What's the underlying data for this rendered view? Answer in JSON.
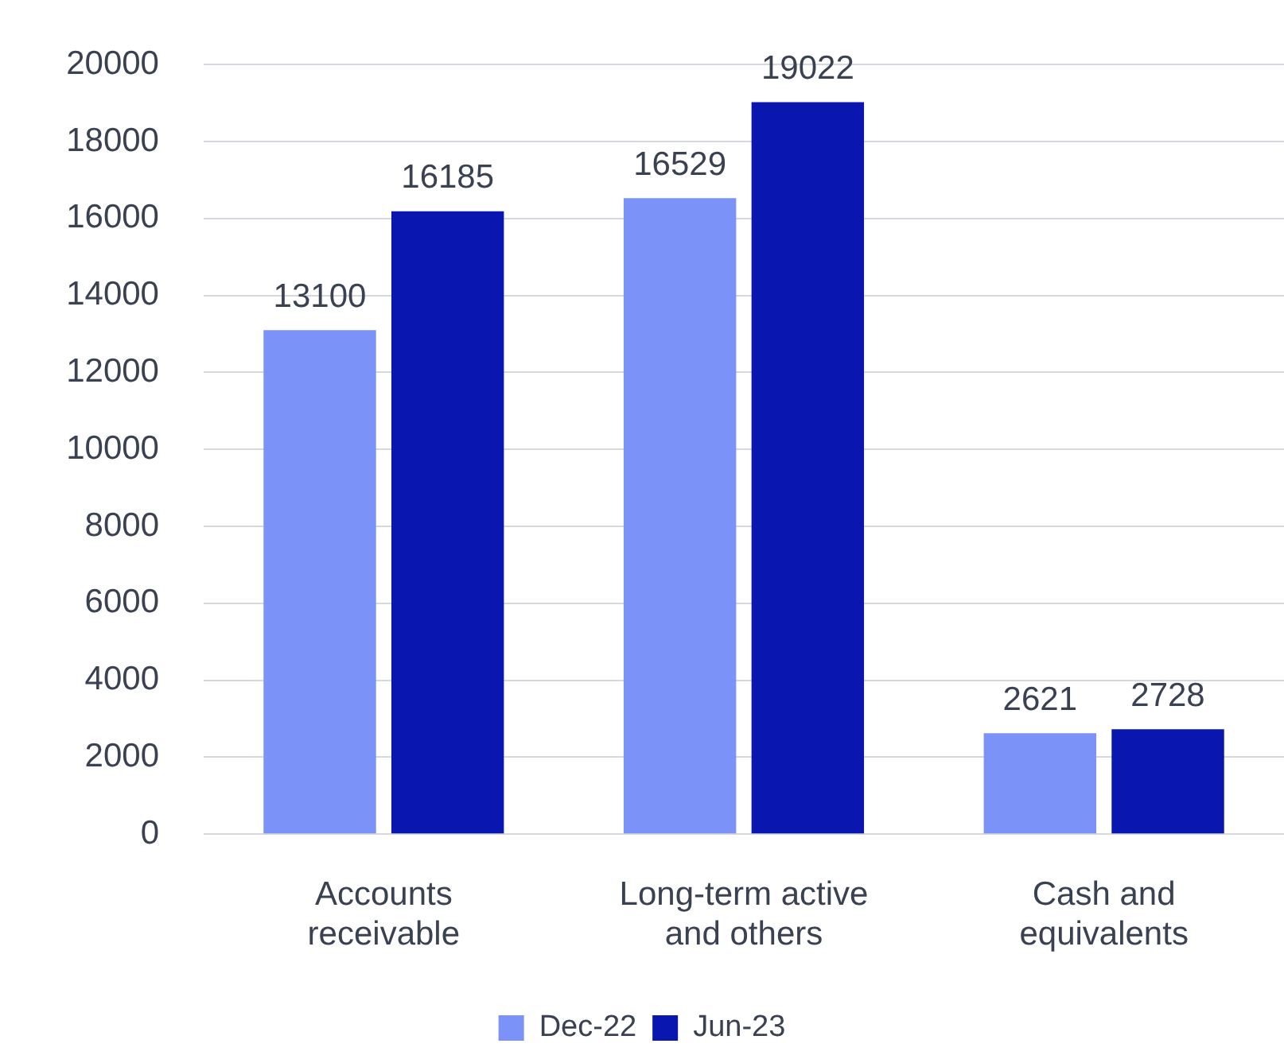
{
  "chart_data": {
    "type": "bar",
    "categories": [
      "Accounts receivable",
      "Long-term active and others",
      "Cash and equivalents"
    ],
    "series": [
      {
        "name": "Dec-22",
        "color": "#7b92f9",
        "values": [
          13100,
          16529,
          2621
        ]
      },
      {
        "name": "Jun-23",
        "color": "#0a16b0",
        "values": [
          16185,
          19022,
          2728
        ]
      }
    ],
    "ylim": [
      0,
      20000
    ],
    "yticks": [
      0,
      2000,
      4000,
      6000,
      8000,
      10000,
      12000,
      14000,
      16000,
      18000,
      20000
    ],
    "grid": "y",
    "legend": "bottom",
    "data_labels": true
  }
}
